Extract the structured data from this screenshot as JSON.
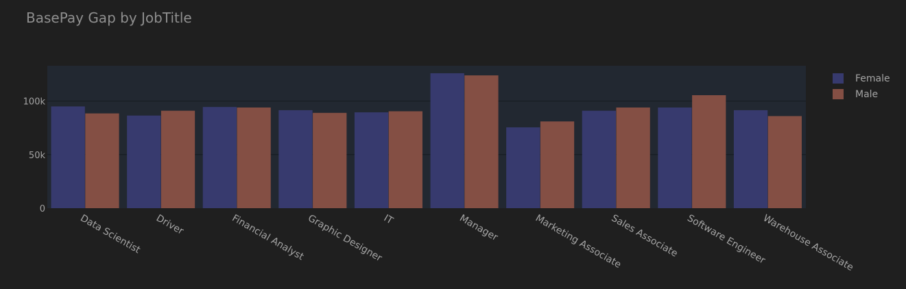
{
  "chart_data": {
    "type": "bar",
    "title": "BasePay Gap by JobTitle",
    "xlabel": "",
    "ylabel": "",
    "categories": [
      "Data Scientist",
      "Driver",
      "Financial Analyst",
      "Graphic Designer",
      "IT",
      "Manager",
      "Marketing Associate",
      "Sales Associate",
      "Software Engineer",
      "Warehouse Associate"
    ],
    "series": [
      {
        "name": "Female",
        "color": "#373a6e",
        "values": [
          95000,
          86500,
          94500,
          91500,
          89500,
          126000,
          75500,
          91000,
          94000,
          91500
        ]
      },
      {
        "name": "Male",
        "color": "#844f44",
        "values": [
          88500,
          91000,
          94000,
          89000,
          90500,
          124000,
          81000,
          94000,
          105500,
          86000
        ]
      }
    ],
    "ylim": [
      0,
      133000
    ],
    "yticks": [
      0,
      50000,
      100000
    ],
    "ytick_labels": [
      "0",
      "50k",
      "100k"
    ],
    "grid": true,
    "legend_position": "right",
    "colors": {
      "background": "#1f1f1f",
      "plot_background": "#222831",
      "grid": "#151a20",
      "text": "#a4a4a4"
    }
  }
}
